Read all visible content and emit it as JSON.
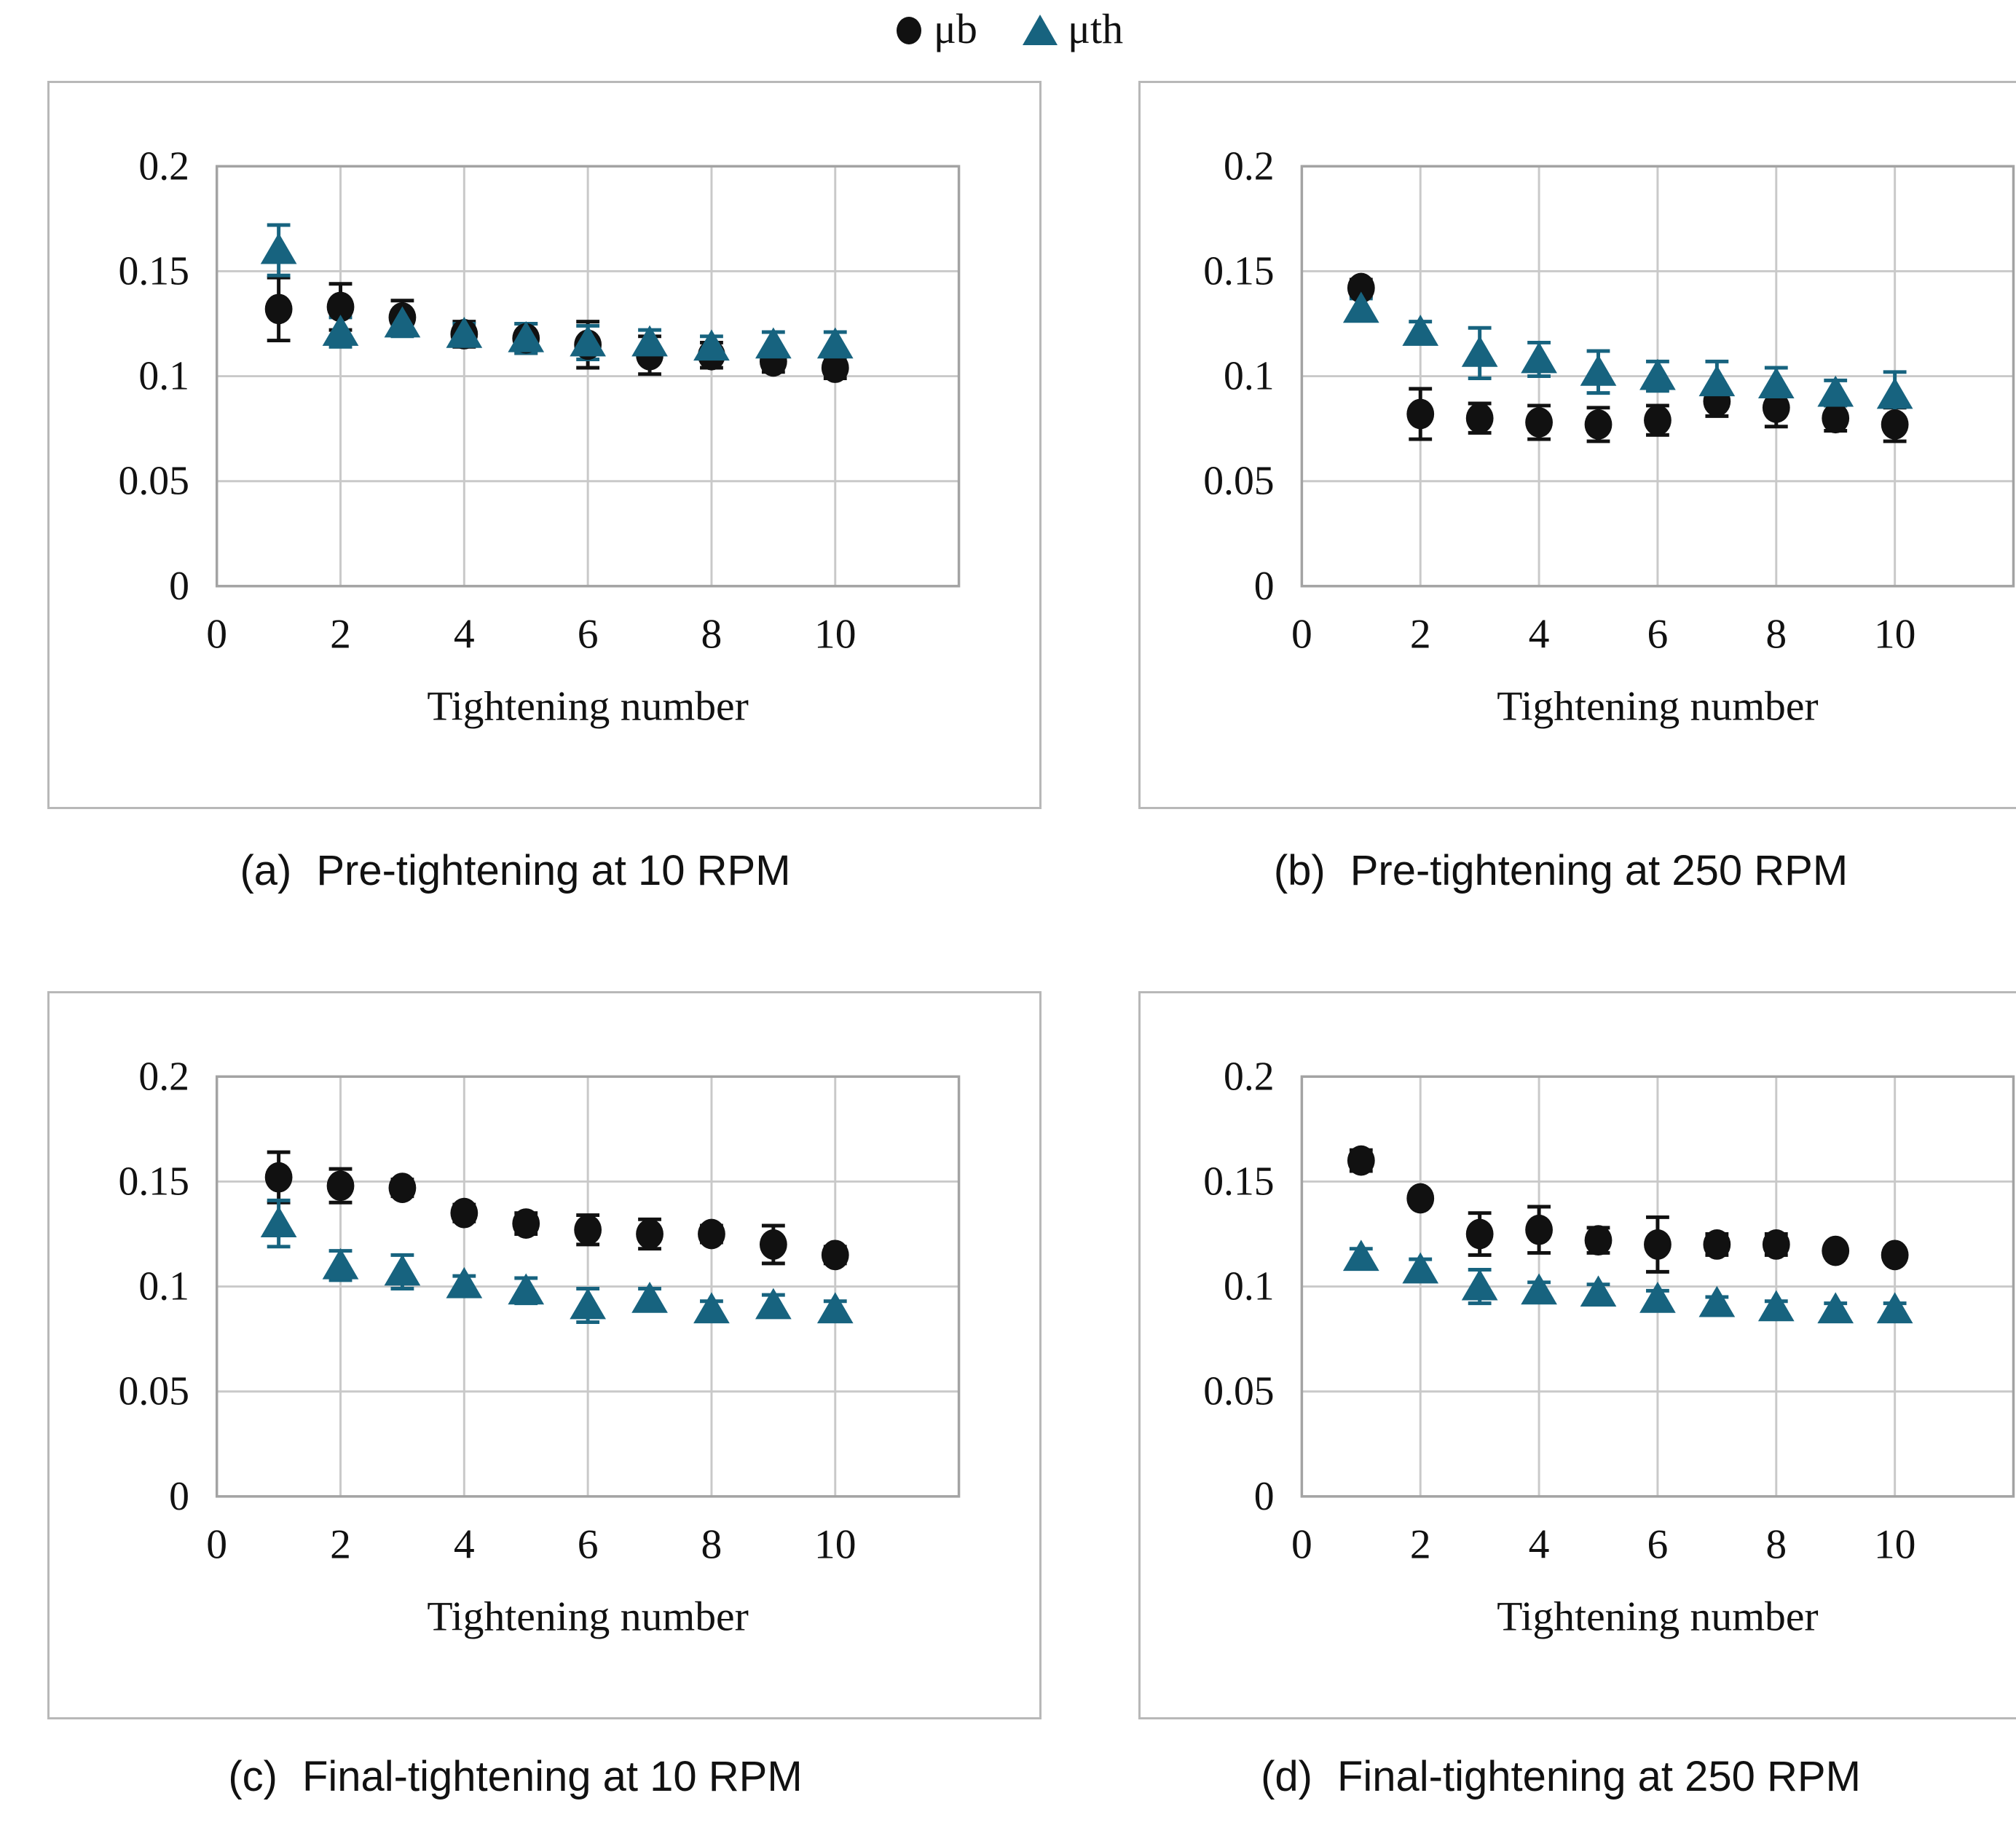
{
  "legend": {
    "items": [
      {
        "label": "μb",
        "marker": "circle",
        "color": "#111111"
      },
      {
        "label": "μth",
        "marker": "triangle",
        "color": "#17637f"
      }
    ]
  },
  "chart_data": [
    {
      "id": "a",
      "type": "scatter",
      "caption_prefix": "(a)",
      "caption_text": "Pre-tightening at 10 RPM",
      "xlabel": "Tightening number",
      "x": [
        1,
        2,
        3,
        4,
        5,
        6,
        7,
        8,
        9,
        10
      ],
      "xlim": [
        0,
        12
      ],
      "ylim": [
        0,
        0.2
      ],
      "xticks": [
        0,
        2,
        4,
        6,
        8,
        10
      ],
      "yticks": [
        {
          "v": 0,
          "label": "0"
        },
        {
          "v": 0.05,
          "label": "0.05"
        },
        {
          "v": 0.1,
          "label": "0.1"
        },
        {
          "v": 0.15,
          "label": "0.15"
        },
        {
          "v": 0.2,
          "label": "0.2"
        }
      ],
      "grid": true,
      "legend_position": "top-center-shared",
      "series": [
        {
          "name": "μb",
          "marker": "circle",
          "color": "#111111",
          "values": [
            0.132,
            0.133,
            0.128,
            0.12,
            0.118,
            0.115,
            0.11,
            0.11,
            0.107,
            0.104
          ],
          "errors": [
            0.015,
            0.011,
            0.008,
            0.006,
            0.007,
            0.011,
            0.009,
            0.006,
            0.005,
            0.005
          ]
        },
        {
          "name": "μth",
          "marker": "triangle",
          "color": "#17637f",
          "values": [
            0.16,
            0.121,
            0.125,
            0.12,
            0.118,
            0.116,
            0.116,
            0.114,
            0.115,
            0.115
          ],
          "errors": [
            0.012,
            0.007,
            0.006,
            0.005,
            0.007,
            0.008,
            0.006,
            0.005,
            0.006,
            0.006
          ]
        }
      ]
    },
    {
      "id": "b",
      "type": "scatter",
      "caption_prefix": "(b)",
      "caption_text": "Pre-tightening at 250 RPM",
      "xlabel": "Tightening number",
      "x": [
        1,
        2,
        3,
        4,
        5,
        6,
        7,
        8,
        9,
        10
      ],
      "xlim": [
        0,
        12
      ],
      "ylim": [
        0,
        0.2
      ],
      "xticks": [
        0,
        2,
        4,
        6,
        8,
        10
      ],
      "yticks": [
        {
          "v": 0,
          "label": "0"
        },
        {
          "v": 0.05,
          "label": "0.05"
        },
        {
          "v": 0.1,
          "label": "0.1"
        },
        {
          "v": 0.15,
          "label": "0.15"
        },
        {
          "v": 0.2,
          "label": "0.2"
        }
      ],
      "grid": true,
      "legend_position": "top-center-shared",
      "series": [
        {
          "name": "μb",
          "marker": "circle",
          "color": "#111111",
          "values": [
            0.142,
            0.082,
            0.08,
            0.078,
            0.077,
            0.079,
            0.088,
            0.085,
            0.08,
            0.077
          ],
          "errors": [
            0.004,
            0.012,
            0.007,
            0.008,
            0.008,
            0.007,
            0.007,
            0.009,
            0.006,
            0.008
          ]
        },
        {
          "name": "μth",
          "marker": "triangle",
          "color": "#17637f",
          "values": [
            0.132,
            0.121,
            0.111,
            0.108,
            0.102,
            0.1,
            0.097,
            0.096,
            0.092,
            0.091
          ],
          "errors": [
            0.005,
            0.005,
            0.012,
            0.008,
            0.01,
            0.007,
            0.01,
            0.008,
            0.006,
            0.011
          ]
        }
      ]
    },
    {
      "id": "c",
      "type": "scatter",
      "caption_prefix": "(c)",
      "caption_text": "Final-tightening at 10 RPM",
      "xlabel": "Tightening number",
      "x": [
        1,
        2,
        3,
        4,
        5,
        6,
        7,
        8,
        9,
        10
      ],
      "xlim": [
        0,
        12
      ],
      "ylim": [
        0,
        0.2
      ],
      "xticks": [
        0,
        2,
        4,
        6,
        8,
        10
      ],
      "yticks": [
        {
          "v": 0,
          "label": "0"
        },
        {
          "v": 0.05,
          "label": "0.05"
        },
        {
          "v": 0.1,
          "label": "0.1"
        },
        {
          "v": 0.15,
          "label": "0.15"
        },
        {
          "v": 0.2,
          "label": "0.2"
        }
      ],
      "grid": true,
      "legend_position": "top-center-shared",
      "series": [
        {
          "name": "μb",
          "marker": "circle",
          "color": "#111111",
          "values": [
            0.152,
            0.148,
            0.147,
            0.135,
            0.13,
            0.127,
            0.125,
            0.125,
            0.12,
            0.115
          ],
          "errors": [
            0.012,
            0.008,
            0.004,
            0.004,
            0.005,
            0.007,
            0.007,
            0.004,
            0.009,
            0.004
          ]
        },
        {
          "name": "μth",
          "marker": "triangle",
          "color": "#17637f",
          "values": [
            0.13,
            0.11,
            0.107,
            0.101,
            0.098,
            0.091,
            0.094,
            0.089,
            0.091,
            0.089
          ],
          "errors": [
            0.011,
            0.007,
            0.008,
            0.004,
            0.006,
            0.008,
            0.005,
            0.004,
            0.005,
            0.004
          ]
        }
      ]
    },
    {
      "id": "d",
      "type": "scatter",
      "caption_prefix": "(d)",
      "caption_text": "Final-tightening at 250 RPM",
      "xlabel": "Tightening number",
      "x": [
        1,
        2,
        3,
        4,
        5,
        6,
        7,
        8,
        9,
        10
      ],
      "xlim": [
        0,
        12
      ],
      "ylim": [
        0,
        0.2
      ],
      "xticks": [
        0,
        2,
        4,
        6,
        8,
        10
      ],
      "yticks": [
        {
          "v": 0,
          "label": "0"
        },
        {
          "v": 0.05,
          "label": "0.05"
        },
        {
          "v": 0.1,
          "label": "0.1"
        },
        {
          "v": 0.15,
          "label": "0.15"
        },
        {
          "v": 0.2,
          "label": "0.2"
        }
      ],
      "grid": true,
      "legend_position": "top-center-shared",
      "series": [
        {
          "name": "μb",
          "marker": "circle",
          "color": "#111111",
          "values": [
            0.16,
            0.142,
            0.125,
            0.127,
            0.122,
            0.12,
            0.12,
            0.12,
            0.117,
            0.115
          ],
          "errors": [
            0.005,
            0.003,
            0.01,
            0.011,
            0.006,
            0.013,
            0.005,
            0.005,
            0.002,
            0.003
          ]
        },
        {
          "name": "μth",
          "marker": "triangle",
          "color": "#17637f",
          "values": [
            0.114,
            0.108,
            0.1,
            0.098,
            0.097,
            0.094,
            0.092,
            0.09,
            0.089,
            0.089
          ],
          "errors": [
            0.004,
            0.005,
            0.008,
            0.004,
            0.004,
            0.004,
            0.003,
            0.003,
            0.003,
            0.003
          ]
        }
      ]
    }
  ],
  "style": {
    "grid_color": "#c9c9c9",
    "frame_color": "#a3a3a3",
    "tick_font_px": 56,
    "axis_title_font_px": 58
  }
}
